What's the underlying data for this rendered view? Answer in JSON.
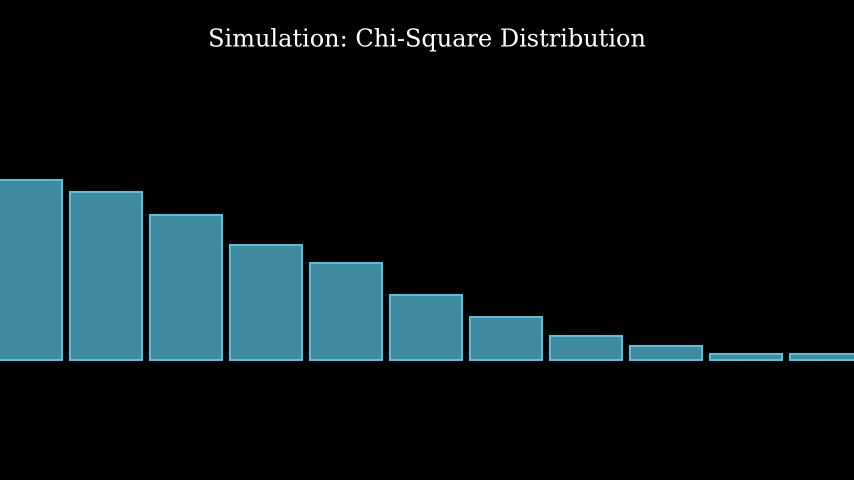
{
  "chart_data": {
    "type": "bar",
    "title": "Simulation: Chi-Square Distribution",
    "categories": [
      null,
      null,
      null,
      null,
      null,
      null,
      null,
      null,
      null,
      null,
      null
    ],
    "values": [
      180,
      168,
      145,
      115,
      97,
      65,
      43,
      24,
      14,
      6,
      6
    ],
    "color": "#3f8a9e",
    "edgecolor": "#4fc3dc"
  }
}
